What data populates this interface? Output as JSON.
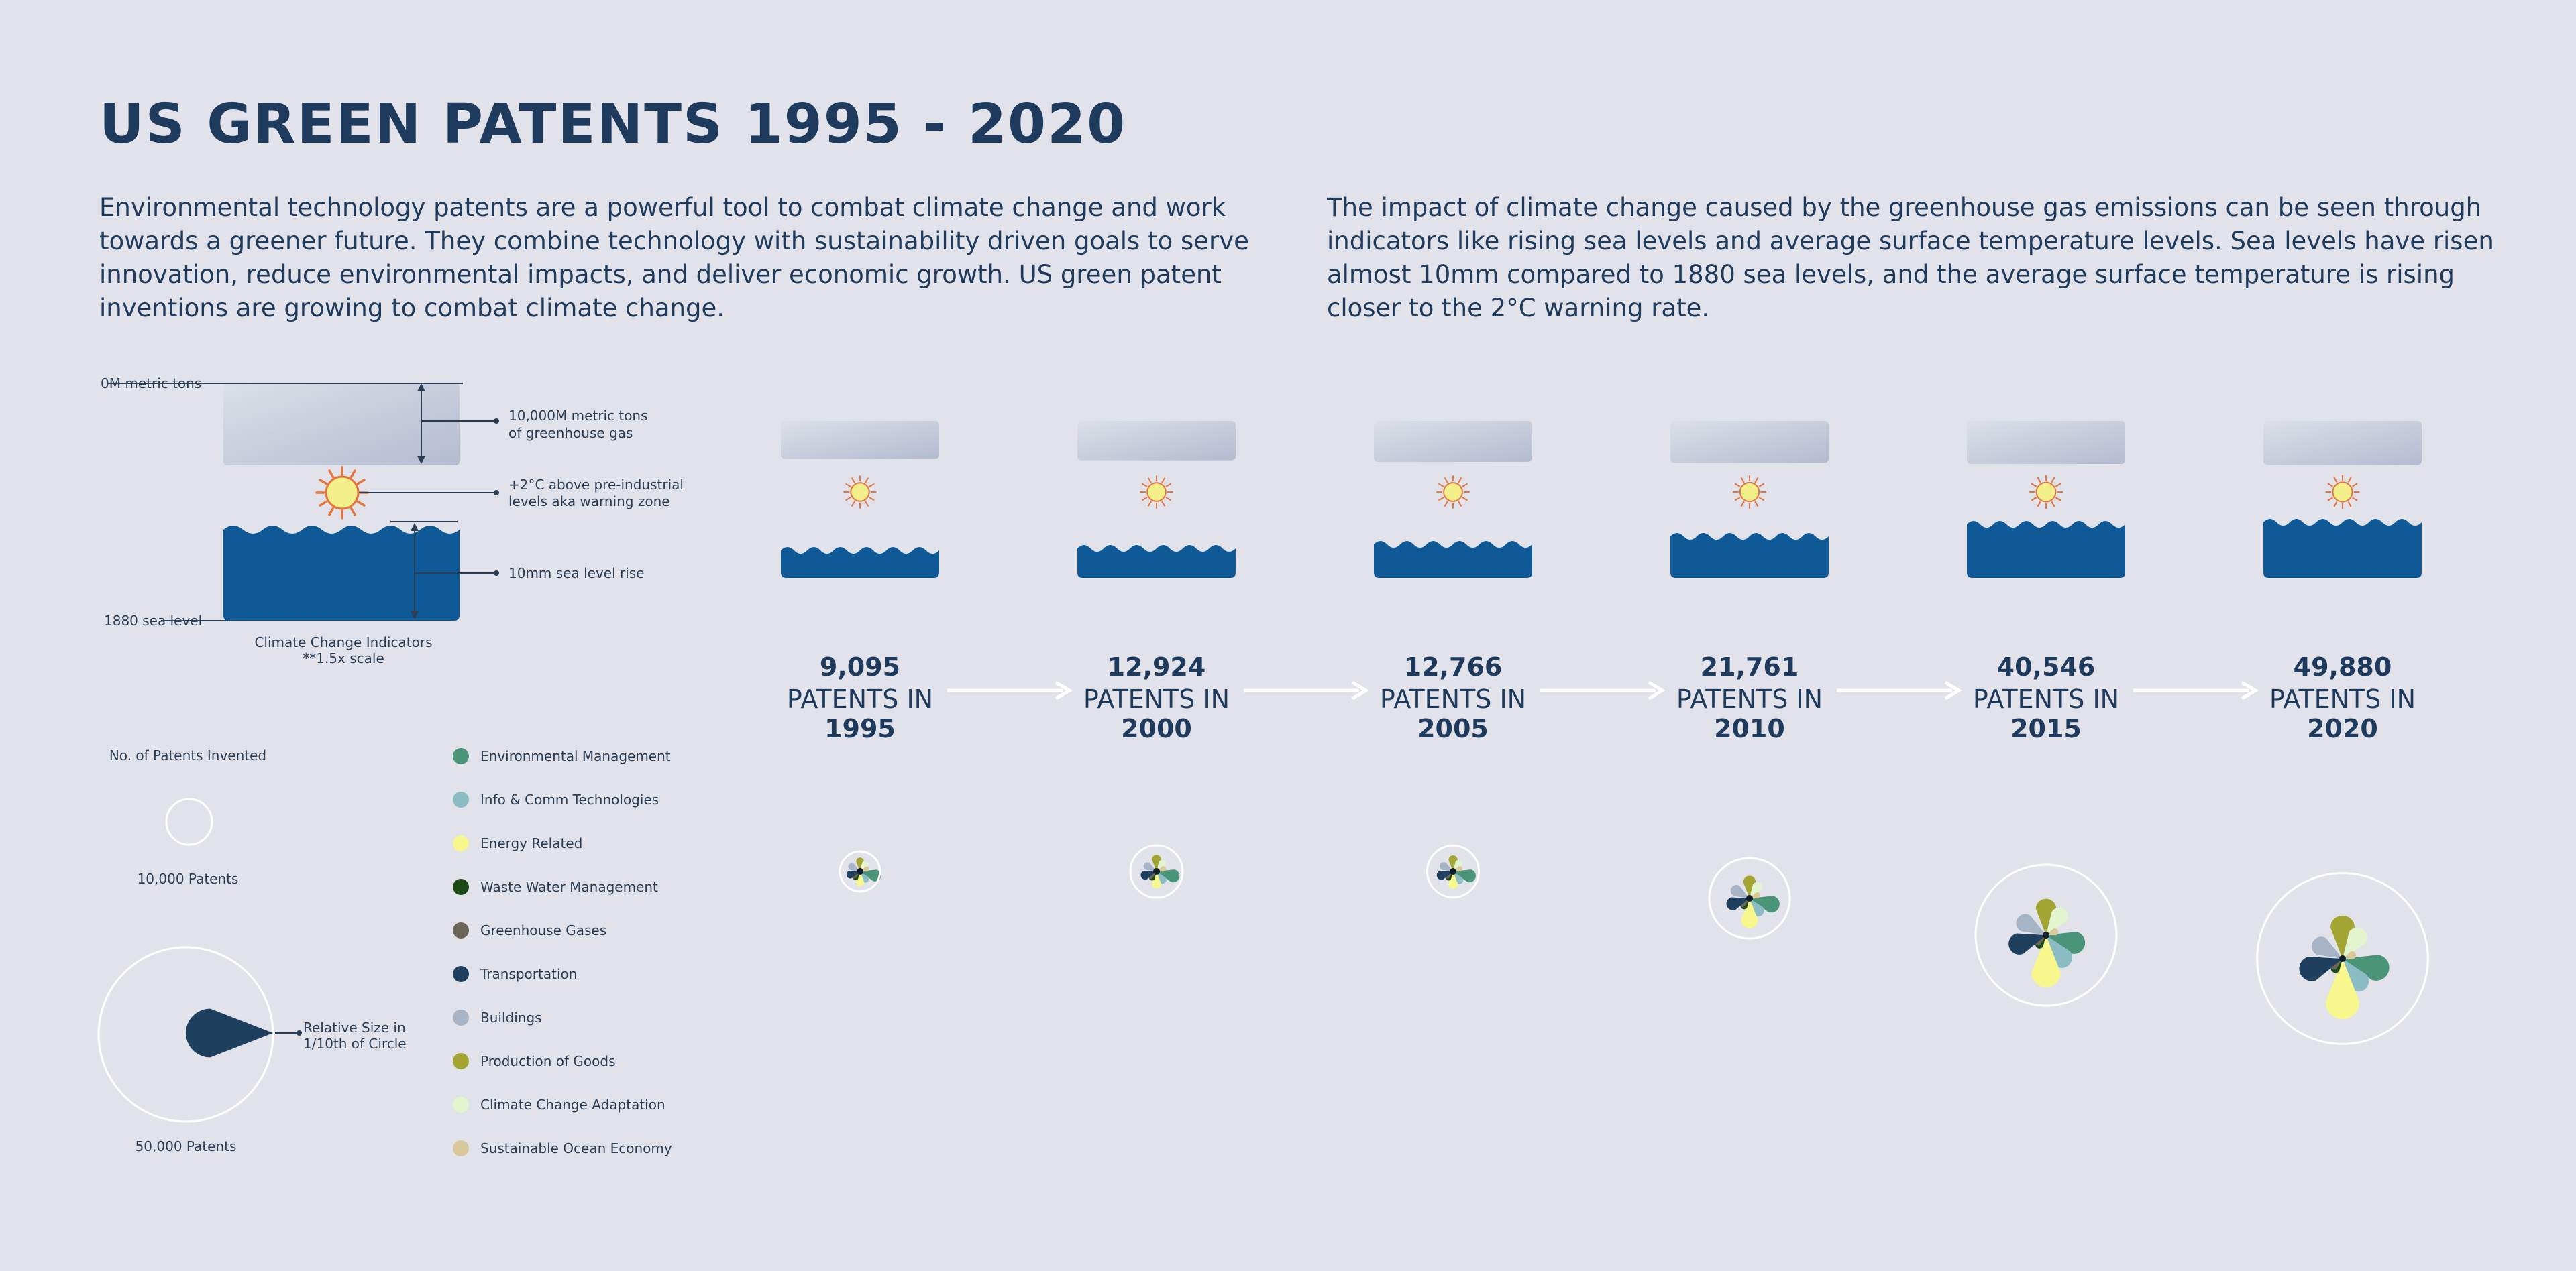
{
  "header": {
    "title": "US GREEN PATENTS 1995 - 2020",
    "intro_left": "Environmental technology patents are a powerful tool to combat climate change and work towards a greener future. They combine technology with sustainability driven goals to serve innovation, reduce environmental impacts, and deliver economic growth. US green patent inventions are growing to combat climate change.",
    "intro_right": "The impact of climate change caused by the greenhouse gas emissions can be seen through indicators like rising sea levels and average surface temperature levels. Sea levels have risen almost 10mm compared to 1880 sea levels, and the average surface temperature is rising closer to the 2°C warning rate."
  },
  "indicator_legend": {
    "zero_tons": "0M metric tons",
    "gas_line1": "10,000M metric tons",
    "gas_line2": "of greenhouse gas",
    "temp_line1": "+2°C above pre-industrial",
    "temp_line2": "levels aka warning zone",
    "sea_rise": "10mm sea level rise",
    "sea_1880": "1880 sea level",
    "caption1": "Climate Change Indicators",
    "caption2": "**1.5x scale"
  },
  "size_legend": {
    "title": "No. of Patents Invented",
    "small_label": "10,000 Patents",
    "large_label": "50,000 Patents",
    "petal_line1": "Relative Size in",
    "petal_line2": "1/10th of Circle"
  },
  "colors": {
    "background": "#e2e2ea",
    "text": "#1e3a5c",
    "sea": "#0f5a96",
    "gas": "#c4cad9",
    "sun": "#f3ef8a",
    "sun_rays": "#e6733a"
  },
  "chart_data": {
    "type": "radial-petal",
    "title": "US GREEN PATENTS 1995 - 2020",
    "categories": [
      {
        "name": "Environmental Management",
        "color": "#4a9478"
      },
      {
        "name": "Info & Comm Technologies",
        "color": "#8bbcc4"
      },
      {
        "name": "Energy Related",
        "color": "#f7f78e"
      },
      {
        "name": "Waste Water Management",
        "color": "#1c4a16"
      },
      {
        "name": "Greenhouse Gases",
        "color": "#6b6558"
      },
      {
        "name": "Transportation",
        "color": "#1f3f5e"
      },
      {
        "name": "Buildings",
        "color": "#a7b4c6"
      },
      {
        "name": "Production of Goods",
        "color": "#a3a532"
      },
      {
        "name": "Climate Change Adaptation",
        "color": "#e3f5cf"
      },
      {
        "name": "Sustainable Ocean Economy",
        "color": "#d8c89a"
      }
    ],
    "years": [
      {
        "year": "1995",
        "label_top": "9,095",
        "label_mid": "PATENTS IN",
        "label_bottom": "1995",
        "total": 9095,
        "sea_rise": 0.15,
        "gas_level": 0.55,
        "temp_level": 0.35,
        "values": {
          "Environmental Management": 1550,
          "Info & Comm Technologies": 250,
          "Energy Related": 500,
          "Waste Water Management": 80,
          "Greenhouse Gases": 60,
          "Transportation": 400,
          "Buildings": 300,
          "Production of Goods": 400,
          "Climate Change Adaptation": 200,
          "Sustainable Ocean Economy": 40
        }
      },
      {
        "year": "2000",
        "label_top": "12,924",
        "label_mid": "PATENTS IN",
        "label_bottom": "2000",
        "total": 12924,
        "sea_rise": 0.2,
        "gas_level": 0.62,
        "temp_level": 0.4,
        "values": {
          "Environmental Management": 1700,
          "Info & Comm Technologies": 350,
          "Energy Related": 650,
          "Waste Water Management": 90,
          "Greenhouse Gases": 70,
          "Transportation": 550,
          "Buildings": 350,
          "Production of Goods": 600,
          "Climate Change Adaptation": 250,
          "Sustainable Ocean Economy": 50
        }
      },
      {
        "year": "2005",
        "label_top": "12,766",
        "label_mid": "PATENTS IN",
        "label_bottom": "2005",
        "total": 12766,
        "sea_rise": 0.3,
        "gas_level": 0.7,
        "temp_level": 0.45,
        "values": {
          "Environmental Management": 1750,
          "Info & Comm Technologies": 400,
          "Energy Related": 700,
          "Waste Water Management": 90,
          "Greenhouse Gases": 70,
          "Transportation": 650,
          "Buildings": 400,
          "Production of Goods": 550,
          "Climate Change Adaptation": 250,
          "Sustainable Ocean Economy": 50
        }
      },
      {
        "year": "2010",
        "label_top": "21,761",
        "label_mid": "PATENTS IN",
        "label_bottom": "2010",
        "total": 21761,
        "sea_rise": 0.5,
        "gas_level": 0.75,
        "temp_level": 0.55,
        "values": {
          "Environmental Management": 2500,
          "Info & Comm Technologies": 900,
          "Energy Related": 2400,
          "Waste Water Management": 150,
          "Greenhouse Gases": 120,
          "Transportation": 1250,
          "Buildings": 900,
          "Production of Goods": 1100,
          "Climate Change Adaptation": 600,
          "Sustainable Ocean Economy": 80
        }
      },
      {
        "year": "2015",
        "label_top": "40,546",
        "label_mid": "PATENTS IN",
        "label_bottom": "2015",
        "total": 40546,
        "sea_rise": 0.8,
        "gas_level": 0.8,
        "temp_level": 0.7,
        "values": {
          "Environmental Management": 3000,
          "Info & Comm Technologies": 2600,
          "Energy Related": 5600,
          "Waste Water Management": 200,
          "Greenhouse Gases": 150,
          "Transportation": 2700,
          "Buildings": 1800,
          "Production of Goods": 2400,
          "Climate Change Adaptation": 1600,
          "Sustainable Ocean Economy": 100
        }
      },
      {
        "year": "2020",
        "label_top": "49,880",
        "label_mid": "PATENTS IN",
        "label_bottom": "2020",
        "total": 49880,
        "sea_rise": 0.85,
        "gas_level": 0.85,
        "temp_level": 0.8,
        "values": {
          "Environmental Management": 3600,
          "Info & Comm Technologies": 2200,
          "Energy Related": 6500,
          "Waste Water Management": 220,
          "Greenhouse Gases": 160,
          "Transportation": 3300,
          "Buildings": 1700,
          "Production of Goods": 3000,
          "Climate Change Adaptation": 1900,
          "Sustainable Ocean Economy": 120
        }
      }
    ]
  }
}
